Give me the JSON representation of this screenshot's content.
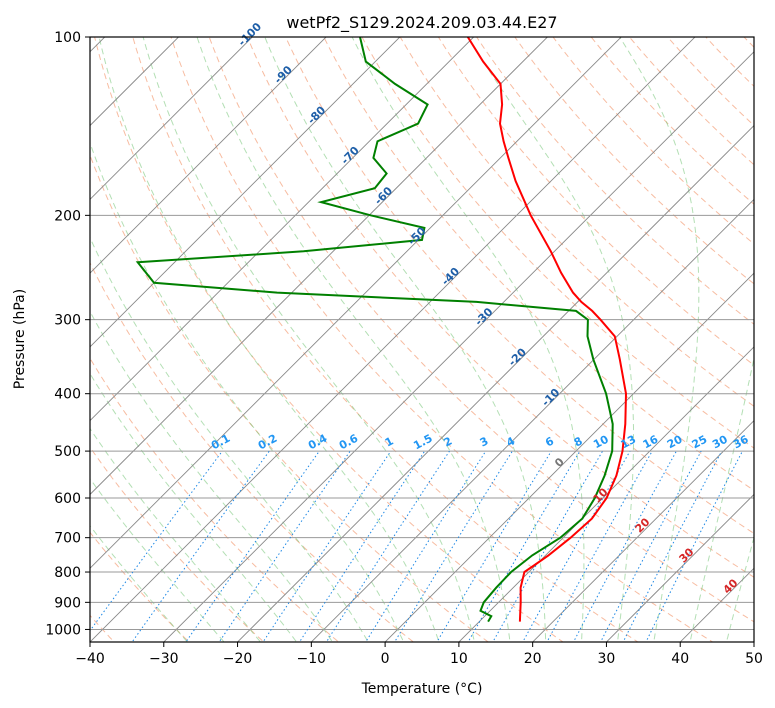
{
  "chart_data": {
    "type": "line",
    "subtype": "skew-T log-P diagram",
    "title": "wetPf2_S129.2024.209.03.44.E27",
    "xlabel": "Temperature (°C)",
    "ylabel": "Pressure (hPa)",
    "xlim": [
      -40,
      50
    ],
    "ylim": [
      1050,
      100
    ],
    "y_scale": "log",
    "x_ticks": [
      -40,
      -30,
      -20,
      -10,
      0,
      10,
      20,
      30,
      40,
      50
    ],
    "y_ticks": [
      1000,
      900,
      800,
      700,
      600,
      500,
      400,
      300,
      200,
      100
    ],
    "grid": true,
    "series": [
      {
        "role": "temperature",
        "color": "#ff0000",
        "points": [
          [
            970,
            15.5
          ],
          [
            950,
            14.8
          ],
          [
            900,
            13.0
          ],
          [
            850,
            11.0
          ],
          [
            800,
            9.4
          ],
          [
            780,
            9.8
          ],
          [
            750,
            10.4
          ],
          [
            700,
            11.0
          ],
          [
            650,
            11.3
          ],
          [
            600,
            10.5
          ],
          [
            550,
            8.8
          ],
          [
            500,
            6.3
          ],
          [
            450,
            3.0
          ],
          [
            400,
            -1.0
          ],
          [
            350,
            -6.5
          ],
          [
            320,
            -10.3
          ],
          [
            300,
            -14.5
          ],
          [
            290,
            -16.8
          ],
          [
            280,
            -19.5
          ],
          [
            270,
            -21.9
          ],
          [
            250,
            -26.2
          ],
          [
            230,
            -30.5
          ],
          [
            200,
            -38.1
          ],
          [
            175,
            -44.8
          ],
          [
            160,
            -48.9
          ],
          [
            150,
            -51.8
          ],
          [
            140,
            -54.7
          ],
          [
            130,
            -57.0
          ],
          [
            120,
            -60.0
          ],
          [
            110,
            -65.4
          ],
          [
            100,
            -70.8
          ]
        ]
      },
      {
        "role": "dewpoint",
        "color": "#008000",
        "points": [
          [
            970,
            11.2
          ],
          [
            950,
            10.9
          ],
          [
            930,
            8.7
          ],
          [
            900,
            8.0
          ],
          [
            850,
            7.7
          ],
          [
            800,
            7.6
          ],
          [
            750,
            8.2
          ],
          [
            700,
            9.6
          ],
          [
            650,
            10.0
          ],
          [
            600,
            8.9
          ],
          [
            550,
            7.2
          ],
          [
            500,
            4.9
          ],
          [
            450,
            1.3
          ],
          [
            400,
            -3.7
          ],
          [
            350,
            -10.1
          ],
          [
            320,
            -14.0
          ],
          [
            300,
            -16.2
          ],
          [
            290,
            -19.0
          ],
          [
            280,
            -33.7
          ],
          [
            270,
            -62.0
          ],
          [
            260,
            -80.0
          ],
          [
            240,
            -85.0
          ],
          [
            230,
            -64.0
          ],
          [
            220,
            -49.5
          ],
          [
            210,
            -50.8
          ],
          [
            200,
            -59.8
          ],
          [
            190,
            -68.3
          ],
          [
            180,
            -62.9
          ],
          [
            170,
            -63.3
          ],
          [
            160,
            -67.2
          ],
          [
            150,
            -68.9
          ],
          [
            140,
            -65.8
          ],
          [
            130,
            -67.1
          ],
          [
            120,
            -74.3
          ],
          [
            110,
            -81.3
          ],
          [
            100,
            -85.4
          ]
        ]
      }
    ],
    "isotherm_labels": [
      -100,
      -90,
      -80,
      -70,
      -60,
      -50,
      -40,
      -30,
      -20,
      -10
    ],
    "mixing_ratio_labels": [
      "0.1",
      "0.2",
      "0.4",
      "0.6",
      "1",
      "1.5",
      "2",
      "3",
      "4",
      "6",
      "8",
      "10",
      "13",
      "16",
      "20",
      "25",
      "30",
      "36"
    ],
    "isobar_labels": [
      "0",
      "10",
      "20",
      "30",
      "40"
    ]
  }
}
